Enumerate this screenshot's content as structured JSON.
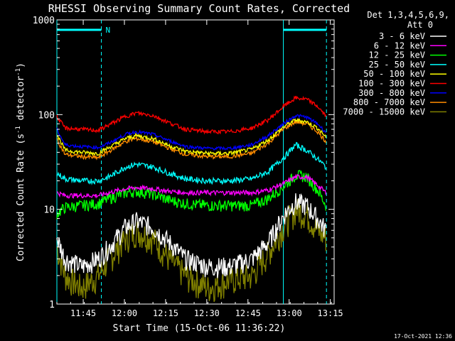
{
  "chart_data": {
    "type": "line",
    "title": "RHESSI Observing Summary Count Rates, Corrected",
    "xlabel": "Start Time (15-Oct-06 11:36:22)",
    "ylabel_prefix": "Corrected Count Rate (s",
    "ylabel_mid": " detector",
    "ylabel_suffix": ")",
    "ylabel_sup": "-1",
    "y_scale": "log",
    "ylim": [
      1,
      1000
    ],
    "xlim_minutes": [
      -1,
      100
    ],
    "x_ticks": [
      {
        "m": 8.6,
        "label": "11:45"
      },
      {
        "m": 23.6,
        "label": "12:00"
      },
      {
        "m": 38.6,
        "label": "12:15"
      },
      {
        "m": 53.6,
        "label": "12:30"
      },
      {
        "m": 68.6,
        "label": "12:45"
      },
      {
        "m": 83.6,
        "label": "13:00"
      },
      {
        "m": 98.6,
        "label": "13:15"
      }
    ],
    "y_ticks": [
      {
        "v": 1,
        "label": "1"
      },
      {
        "v": 10,
        "label": "10"
      },
      {
        "v": 100,
        "label": "100"
      },
      {
        "v": 1000,
        "label": "1000"
      }
    ],
    "legend": {
      "position": "top-right",
      "header": [
        "Det 1,3,4,5,6,9,",
        "Att 0"
      ],
      "entries": [
        {
          "label": "3 - 6 keV",
          "color": "#ffffff"
        },
        {
          "label": "6 - 12 keV",
          "color": "#ff00ff"
        },
        {
          "label": "12 - 25 keV",
          "color": "#00ff00"
        },
        {
          "label": "25 - 50 keV",
          "color": "#00ffff"
        },
        {
          "label": "50 - 100 keV",
          "color": "#ffff00"
        },
        {
          "label": "100 - 300 keV",
          "color": "#ff0000"
        },
        {
          "label": "300 - 800 keV",
          "color": "#0000ff"
        },
        {
          "label": "800 - 7000 keV",
          "color": "#ff8c00"
        },
        {
          "label": "7000 - 15000 keV",
          "color": "#808000"
        }
      ]
    },
    "annotations": {
      "flag_label": "N",
      "flag_bars_minutes": [
        [
          -1,
          15.2
        ],
        [
          81.5,
          97.2
        ]
      ],
      "night_lines_minutes": [
        -1,
        15.2,
        81.5,
        97.2
      ],
      "night_line_color": "#00ffff"
    },
    "series": [
      {
        "color": "#ff0000",
        "values": [
          [
            -1,
            95
          ],
          [
            2,
            72
          ],
          [
            8,
            70
          ],
          [
            14,
            68
          ],
          [
            18,
            78
          ],
          [
            24,
            96
          ],
          [
            28,
            104
          ],
          [
            34,
            98
          ],
          [
            40,
            82
          ],
          [
            46,
            70
          ],
          [
            54,
            66
          ],
          [
            62,
            66
          ],
          [
            70,
            72
          ],
          [
            76,
            88
          ],
          [
            82,
            125
          ],
          [
            86,
            150
          ],
          [
            90,
            145
          ],
          [
            94,
            122
          ],
          [
            97,
            96
          ]
        ]
      },
      {
        "color": "#0000ff",
        "values": [
          [
            -1,
            70
          ],
          [
            2,
            48
          ],
          [
            8,
            46
          ],
          [
            14,
            45
          ],
          [
            18,
            50
          ],
          [
            24,
            62
          ],
          [
            28,
            66
          ],
          [
            34,
            62
          ],
          [
            40,
            53
          ],
          [
            46,
            46
          ],
          [
            54,
            44
          ],
          [
            62,
            44
          ],
          [
            70,
            48
          ],
          [
            76,
            60
          ],
          [
            82,
            82
          ],
          [
            86,
            98
          ],
          [
            90,
            94
          ],
          [
            94,
            80
          ],
          [
            97,
            65
          ]
        ]
      },
      {
        "color": "#ffff00",
        "values": [
          [
            -1,
            62
          ],
          [
            2,
            42
          ],
          [
            8,
            40
          ],
          [
            14,
            39
          ],
          [
            18,
            45
          ],
          [
            24,
            56
          ],
          [
            28,
            60
          ],
          [
            34,
            56
          ],
          [
            40,
            47
          ],
          [
            46,
            41
          ],
          [
            54,
            39
          ],
          [
            62,
            39
          ],
          [
            70,
            43
          ],
          [
            76,
            54
          ],
          [
            82,
            76
          ],
          [
            86,
            88
          ],
          [
            90,
            84
          ],
          [
            94,
            72
          ],
          [
            97,
            58
          ]
        ]
      },
      {
        "color": "#ff8c00",
        "values": [
          [
            -1,
            55
          ],
          [
            2,
            38
          ],
          [
            8,
            36
          ],
          [
            14,
            35
          ],
          [
            18,
            41
          ],
          [
            24,
            52
          ],
          [
            28,
            56
          ],
          [
            34,
            52
          ],
          [
            40,
            44
          ],
          [
            46,
            38
          ],
          [
            54,
            36
          ],
          [
            62,
            36
          ],
          [
            70,
            39
          ],
          [
            76,
            50
          ],
          [
            82,
            72
          ],
          [
            86,
            84
          ],
          [
            90,
            80
          ],
          [
            94,
            66
          ],
          [
            97,
            52
          ]
        ]
      },
      {
        "color": "#00ffff",
        "values": [
          [
            -1,
            24
          ],
          [
            2,
            21
          ],
          [
            8,
            20
          ],
          [
            14,
            20
          ],
          [
            18,
            22
          ],
          [
            24,
            28
          ],
          [
            28,
            30
          ],
          [
            34,
            28
          ],
          [
            40,
            24
          ],
          [
            46,
            21
          ],
          [
            54,
            20
          ],
          [
            62,
            20
          ],
          [
            70,
            21
          ],
          [
            76,
            25
          ],
          [
            82,
            36
          ],
          [
            86,
            48
          ],
          [
            90,
            42
          ],
          [
            94,
            34
          ],
          [
            97,
            28
          ]
        ]
      },
      {
        "color": "#ff00ff",
        "values": [
          [
            -1,
            15
          ],
          [
            2,
            14
          ],
          [
            8,
            14
          ],
          [
            14,
            14
          ],
          [
            18,
            15
          ],
          [
            24,
            16.5
          ],
          [
            28,
            17
          ],
          [
            34,
            16.5
          ],
          [
            40,
            15.5
          ],
          [
            46,
            15
          ],
          [
            54,
            15
          ],
          [
            62,
            15
          ],
          [
            70,
            15
          ],
          [
            76,
            16
          ],
          [
            82,
            19
          ],
          [
            86,
            22
          ],
          [
            90,
            22
          ],
          [
            94,
            18
          ],
          [
            97,
            15
          ]
        ]
      },
      {
        "color": "#00ff00",
        "values": [
          [
            -1,
            9
          ],
          [
            2,
            10.5
          ],
          [
            8,
            11
          ],
          [
            14,
            11.5
          ],
          [
            18,
            13
          ],
          [
            24,
            15
          ],
          [
            28,
            15.5
          ],
          [
            34,
            14.5
          ],
          [
            40,
            12.5
          ],
          [
            46,
            11.5
          ],
          [
            54,
            11
          ],
          [
            62,
            11
          ],
          [
            70,
            11
          ],
          [
            76,
            13
          ],
          [
            82,
            18
          ],
          [
            86,
            23
          ],
          [
            90,
            22
          ],
          [
            94,
            16
          ],
          [
            97,
            11
          ]
        ]
      },
      {
        "color": "#ffffff",
        "values": [
          [
            -1,
            5
          ],
          [
            2,
            3
          ],
          [
            8,
            2.5
          ],
          [
            14,
            3
          ],
          [
            18,
            4
          ],
          [
            24,
            6.5
          ],
          [
            28,
            7.5
          ],
          [
            34,
            6.5
          ],
          [
            40,
            4.5
          ],
          [
            46,
            3
          ],
          [
            54,
            2.5
          ],
          [
            62,
            2.5
          ],
          [
            70,
            3
          ],
          [
            76,
            4.5
          ],
          [
            82,
            9
          ],
          [
            86,
            12
          ],
          [
            90,
            11
          ],
          [
            94,
            8
          ],
          [
            97,
            6
          ]
        ]
      },
      {
        "color": "#808000",
        "values": [
          [
            -1,
            4
          ],
          [
            2,
            2
          ],
          [
            8,
            1.5
          ],
          [
            14,
            2
          ],
          [
            18,
            3
          ],
          [
            24,
            5
          ],
          [
            28,
            6
          ],
          [
            34,
            5
          ],
          [
            40,
            3
          ],
          [
            46,
            2
          ],
          [
            54,
            1.5
          ],
          [
            62,
            1.8
          ],
          [
            70,
            2
          ],
          [
            76,
            3.5
          ],
          [
            82,
            7
          ],
          [
            86,
            10
          ],
          [
            90,
            9
          ],
          [
            94,
            6
          ],
          [
            97,
            5
          ]
        ]
      }
    ]
  },
  "footer": {
    "timestamp": "17-Oct-2021 12:36"
  }
}
